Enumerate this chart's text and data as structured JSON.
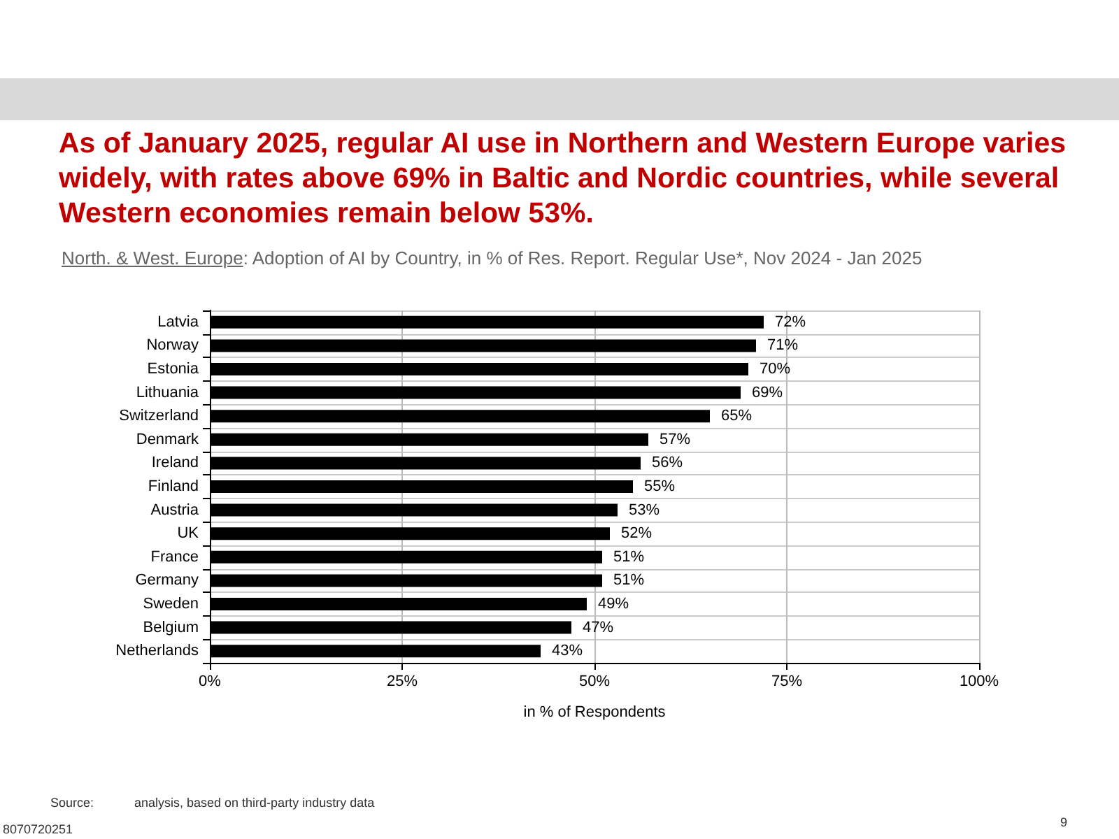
{
  "chart_data": {
    "type": "bar",
    "orientation": "horizontal",
    "title": "As of January 2025, regular AI use in Northern and Western Europe varies widely, with rates above 69% in Baltic and Nordic countries, while several Western economies remain below 53%.",
    "subtitle": "North. & West. Europe: Adoption of AI by Country, in % of Res. Report. Regular Use*, Nov 2024 - Jan 2025",
    "xlabel": "in % of Respondents",
    "categories": [
      "Latvia",
      "Norway",
      "Estonia",
      "Lithuania",
      "Switzerland",
      "Denmark",
      "Ireland",
      "Finland",
      "Austria",
      "UK",
      "France",
      "Germany",
      "Sweden",
      "Belgium",
      "Netherlands"
    ],
    "values": [
      72,
      71,
      70,
      69,
      65,
      57,
      56,
      55,
      53,
      52,
      51,
      51,
      49,
      47,
      43
    ],
    "value_labels": [
      "72%",
      "71%",
      "70%",
      "69%",
      "65%",
      "57%",
      "56%",
      "55%",
      "53%",
      "52%",
      "51%",
      "51%",
      "49%",
      "47%",
      "43%"
    ],
    "color": "#000000",
    "xlim": [
      0,
      100
    ],
    "xticks": [
      {
        "value": 0,
        "label": "0%"
      },
      {
        "value": 25,
        "label": "25%"
      },
      {
        "value": 50,
        "label": "50%"
      },
      {
        "value": 75,
        "label": "75%"
      },
      {
        "value": 100,
        "label": "100%"
      }
    ],
    "grid": true,
    "annotations": [
      "Source:",
      "analysis, based on third-party industry data",
      "8070720251",
      "9"
    ]
  }
}
